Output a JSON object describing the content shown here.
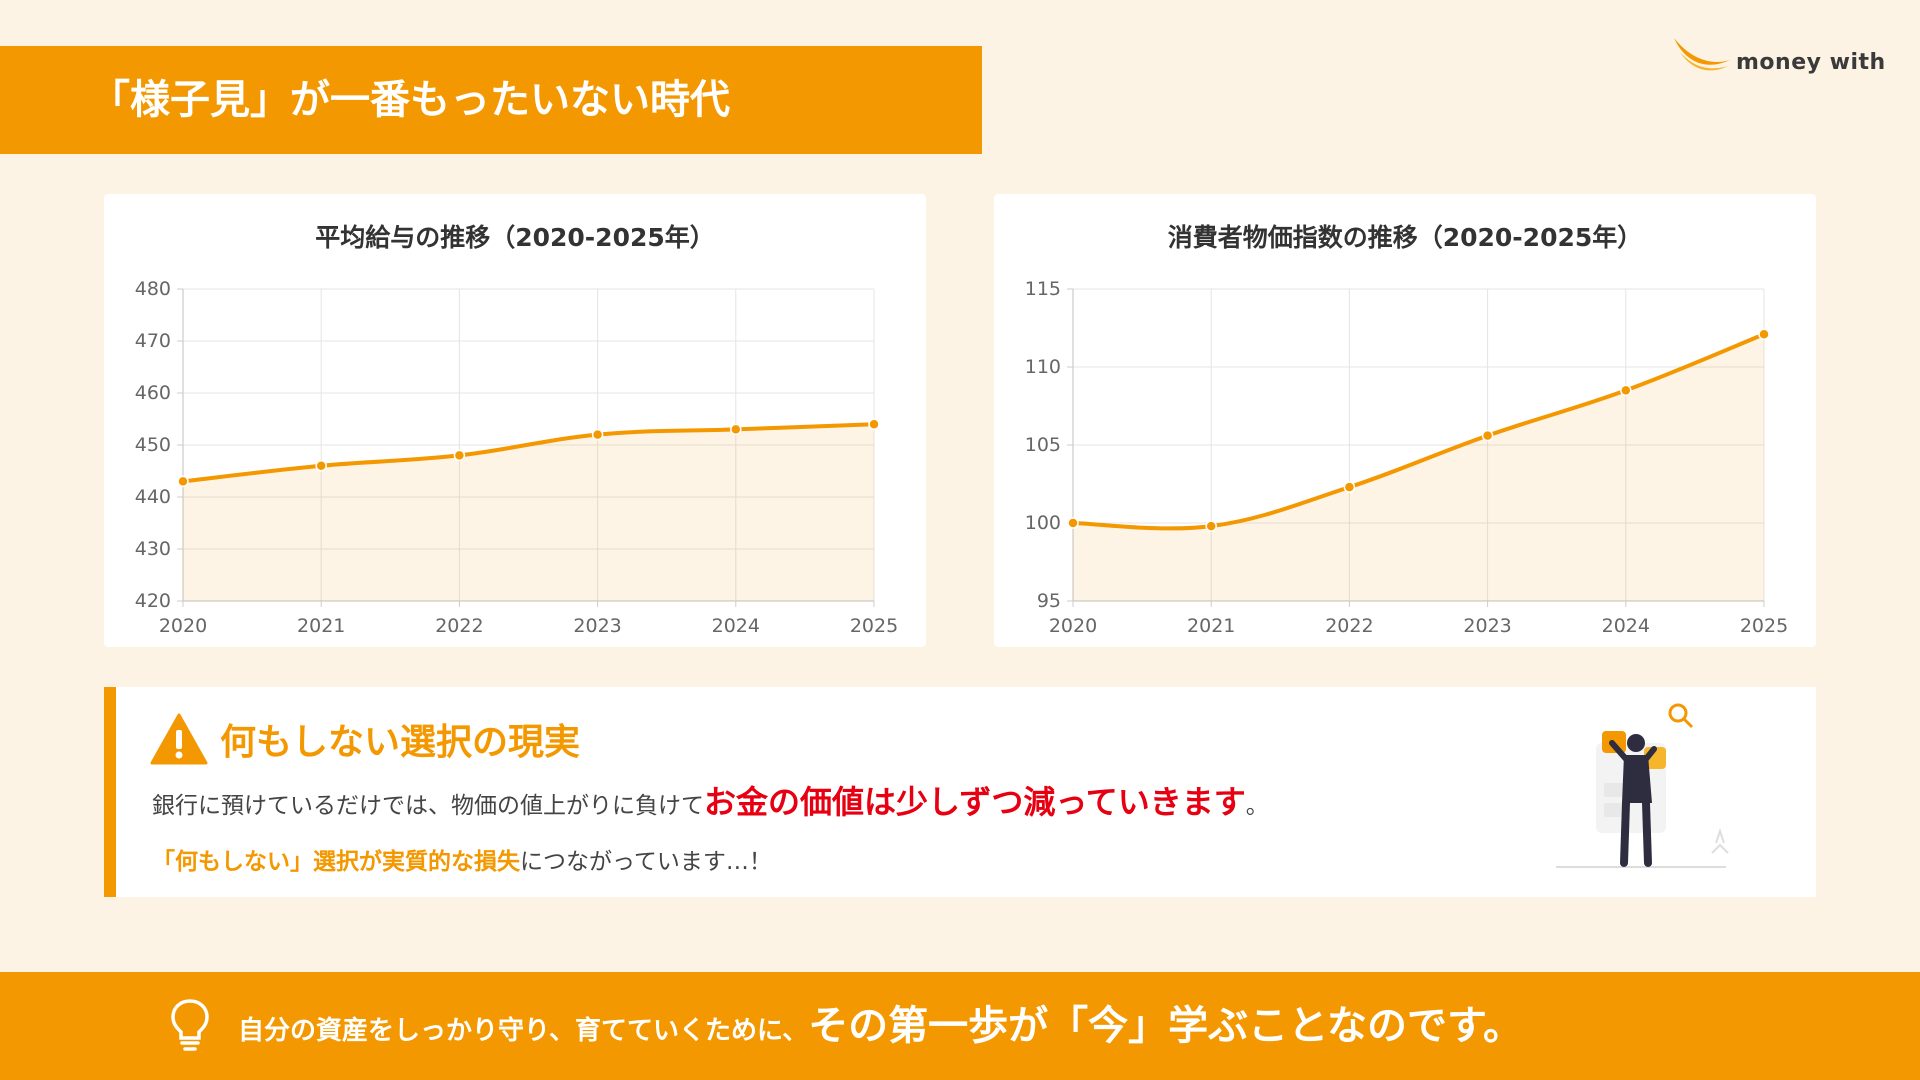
{
  "header": {
    "title": "「様子見」が一番もったいない時代"
  },
  "logo": {
    "text": "money with"
  },
  "chart_data": [
    {
      "type": "area",
      "title": "平均給与の推移（2020-2025年）",
      "x": [
        "2020",
        "2021",
        "2022",
        "2023",
        "2024",
        "2025"
      ],
      "values": [
        443,
        446,
        448,
        452,
        453,
        454
      ],
      "ylim": [
        420,
        480
      ],
      "yticks": [
        420,
        430,
        440,
        450,
        460,
        470,
        480
      ],
      "grid": true,
      "color": "#f39800"
    },
    {
      "type": "area",
      "title": "消費者物価指数の推移（2020-2025年）",
      "x": [
        "2020",
        "2021",
        "2022",
        "2023",
        "2024",
        "2025"
      ],
      "values": [
        100.0,
        99.8,
        102.3,
        105.6,
        108.5,
        112.1
      ],
      "ylim": [
        95,
        115
      ],
      "yticks": [
        95,
        100,
        105,
        110,
        115
      ],
      "grid": true,
      "color": "#f39800"
    }
  ],
  "warning": {
    "icon": "warning-triangle-icon",
    "title": "何もしない選択の現実",
    "line1_prefix": "銀行に預けているだけでは、物価の値上がりに負けて",
    "line1_emphasis": "お金の価値は少しずつ減っていきます",
    "line1_suffix": "。",
    "line2_highlight": "「何もしない」選択が実質的な損失",
    "line2_rest": "につながっています…！"
  },
  "footer": {
    "icon": "lightbulb-icon",
    "text_small": "自分の資産をしっかり守り、育てていくために、",
    "text_big": "その第一歩が「今」学ぶことなのです。"
  },
  "colors": {
    "accent": "#f39800",
    "emphasis": "#e60012",
    "background": "#fdf3e5"
  }
}
